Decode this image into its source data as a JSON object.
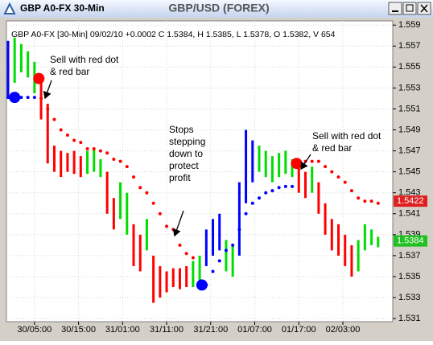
{
  "window": {
    "title": "GBP A0-FX 30-Min"
  },
  "chart_data": {
    "type": "ohlc",
    "title": "GBP/USD (FOREX)",
    "info": "GBP A0-FX [30-Min] 09/02/10 +0.0002 C 1.5384, H 1.5385, L 1.5378, O 1.5382, V 654",
    "xlim": [
      0,
      171
    ],
    "ylim": [
      1.5307,
      1.5594
    ],
    "xticks": [
      {
        "value": 12,
        "label": "30/05:00"
      },
      {
        "value": 32,
        "label": "30/15:00"
      },
      {
        "value": 52,
        "label": "31/01:00"
      },
      {
        "value": 72,
        "label": "31/11:00"
      },
      {
        "value": 92,
        "label": "31/21:00"
      },
      {
        "value": 112,
        "label": "01/07:00"
      },
      {
        "value": 132,
        "label": "01/17:00"
      },
      {
        "value": 152,
        "label": "02/03:00"
      }
    ],
    "yticks": [
      1.531,
      1.533,
      1.535,
      1.537,
      1.539,
      1.541,
      1.543,
      1.545,
      1.547,
      1.549,
      1.551,
      1.553,
      1.555,
      1.557,
      1.559
    ],
    "grid": true,
    "x": [
      0,
      3,
      6,
      9,
      12,
      15,
      18,
      21,
      24,
      27,
      30,
      33,
      36,
      39,
      42,
      45,
      48,
      51,
      54,
      57,
      60,
      63,
      66,
      69,
      72,
      75,
      78,
      81,
      84,
      87,
      90,
      93,
      96,
      99,
      102,
      105,
      108,
      111,
      114,
      117,
      120,
      123,
      126,
      129,
      132,
      135,
      138,
      141,
      144,
      147,
      150,
      153,
      156,
      159,
      162,
      165,
      168
    ],
    "high": [
      1.5575,
      1.5578,
      1.5572,
      1.5565,
      1.5555,
      1.5535,
      1.5515,
      1.5475,
      1.547,
      1.5468,
      1.547,
      1.5465,
      1.547,
      1.5472,
      1.5462,
      1.545,
      1.5425,
      1.544,
      1.543,
      1.54,
      1.539,
      1.5405,
      1.537,
      1.536,
      1.5355,
      1.5358,
      1.5358,
      1.536,
      1.5365,
      1.537,
      1.5395,
      1.5405,
      1.541,
      1.5385,
      1.538,
      1.544,
      1.549,
      1.548,
      1.5475,
      1.547,
      1.5465,
      1.5468,
      1.547,
      1.5462,
      1.5455,
      1.545,
      1.5455,
      1.544,
      1.542,
      1.5405,
      1.54,
      1.539,
      1.538,
      1.5385,
      1.54,
      1.5395,
      1.5388
    ],
    "low": [
      1.552,
      1.5535,
      1.5545,
      1.554,
      1.5525,
      1.55,
      1.5458,
      1.545,
      1.5445,
      1.545,
      1.5448,
      1.5445,
      1.5448,
      1.545,
      1.5445,
      1.541,
      1.5395,
      1.5405,
      1.539,
      1.536,
      1.5355,
      1.5375,
      1.5325,
      1.533,
      1.5335,
      1.534,
      1.5338,
      1.534,
      1.534,
      1.5345,
      1.536,
      1.537,
      1.5375,
      1.5355,
      1.535,
      1.537,
      1.542,
      1.544,
      1.545,
      1.5445,
      1.544,
      1.5445,
      1.5448,
      1.5445,
      1.543,
      1.5425,
      1.543,
      1.541,
      1.539,
      1.5375,
      1.537,
      1.536,
      1.535,
      1.5355,
      1.5375,
      1.538,
      1.5378
    ],
    "colors": [
      "blue",
      "#00dd00",
      "#00dd00",
      "#00dd00",
      "#00dd00",
      "red",
      "red",
      "red",
      "red",
      "red",
      "red",
      "red",
      "#00dd00",
      "#00dd00",
      "#00dd00",
      "red",
      "red",
      "#00dd00",
      "#00dd00",
      "red",
      "red",
      "#00dd00",
      "red",
      "red",
      "red",
      "red",
      "red",
      "red",
      "#00dd00",
      "#00dd00",
      "blue",
      "blue",
      "blue",
      "#00dd00",
      "#00dd00",
      "blue",
      "blue",
      "blue",
      "#00dd00",
      "#00dd00",
      "#00dd00",
      "#00dd00",
      "#00dd00",
      "#00dd00",
      "red",
      "red",
      "#00dd00",
      "red",
      "red",
      "red",
      "red",
      "red",
      "red",
      "#00dd00",
      "#00dd00",
      "#00dd00",
      "#00dd00"
    ],
    "stops": [
      {
        "color": "red",
        "values": [
          null,
          null,
          null,
          null,
          null,
          1.552,
          1.551,
          1.55,
          1.549,
          1.5485,
          1.548,
          1.5478,
          1.5472,
          1.5472,
          1.547,
          1.5468,
          1.5462,
          1.546,
          1.5455,
          1.5445,
          1.5435,
          1.543,
          1.542,
          1.541,
          1.5398,
          1.5395,
          1.538,
          1.5372,
          1.5368,
          null,
          null,
          null,
          null,
          null,
          null,
          null,
          null,
          null,
          null,
          null,
          null,
          null,
          null,
          null,
          1.546,
          1.546,
          1.546,
          1.546,
          1.5455,
          1.545,
          1.5445,
          1.544,
          1.5432,
          1.5425,
          1.5422,
          1.5422,
          1.542
        ]
      },
      {
        "color": "blue",
        "values": [
          1.5521,
          1.5521,
          1.5521,
          1.5521,
          1.5521,
          null,
          null,
          null,
          null,
          null,
          null,
          null,
          null,
          null,
          null,
          null,
          null,
          null,
          null,
          null,
          null,
          null,
          null,
          null,
          null,
          null,
          null,
          null,
          null,
          null,
          1.5342,
          1.5355,
          1.5365,
          1.5375,
          1.538,
          1.5395,
          1.541,
          1.542,
          1.5425,
          1.543,
          1.5432,
          1.5435,
          1.5436,
          1.5436,
          null,
          null,
          null,
          null,
          null,
          null,
          null,
          null,
          null,
          null,
          null,
          null,
          null
        ]
      }
    ],
    "signals": [
      {
        "x": 3,
        "value": 1.5521,
        "color": "blue"
      },
      {
        "x": 14,
        "value": 1.5539,
        "color": "red"
      },
      {
        "x": 88,
        "value": 1.5342,
        "color": "blue"
      },
      {
        "x": 131,
        "value": 1.5458,
        "color": "red"
      }
    ],
    "price_tags": [
      {
        "value": 1.5422,
        "color": "#e02020"
      },
      {
        "value": 1.5384,
        "color": "#20c020"
      }
    ],
    "annotations": [
      {
        "lines": [
          "Sell with red dot",
          "& red bar"
        ]
      },
      {
        "lines": [
          "Stops",
          "stepping",
          "down to",
          "protect",
          "profit"
        ]
      },
      {
        "lines": [
          "Sell with red dot",
          "& red bar"
        ]
      }
    ]
  }
}
